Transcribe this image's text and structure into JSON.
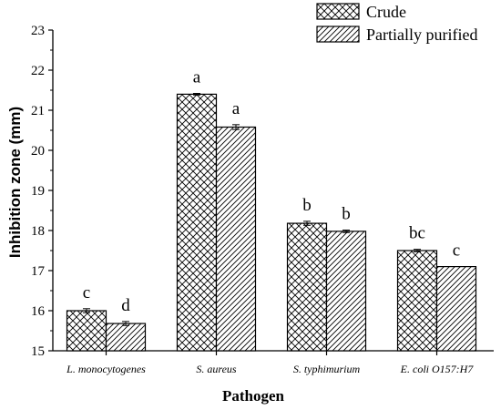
{
  "chart_data": {
    "type": "bar",
    "xlabel": "Pathogen",
    "ylabel": "Inhibition zone (mm)",
    "ylim": [
      15,
      23
    ],
    "yticks": [
      15,
      16,
      17,
      18,
      19,
      20,
      21,
      22,
      23
    ],
    "categories": [
      "L. monocytogenes",
      "S. aureus",
      "S. typhimurium",
      "E. coli O157:H7"
    ],
    "legend_position": "top-right",
    "series": [
      {
        "name": "Crude",
        "pattern": "crosshatch",
        "values": [
          16.0,
          21.4,
          18.18,
          17.5
        ],
        "errors": [
          0.05,
          0.02,
          0.05,
          0.03
        ],
        "labels": [
          "c",
          "a",
          "b",
          "bc"
        ]
      },
      {
        "name": "Partially purified",
        "pattern": "diagonal",
        "values": [
          15.68,
          20.58,
          17.98,
          17.1
        ],
        "errors": [
          0.05,
          0.06,
          0.03,
          0.0
        ],
        "labels": [
          "d",
          "a",
          "b",
          "c"
        ]
      }
    ]
  }
}
